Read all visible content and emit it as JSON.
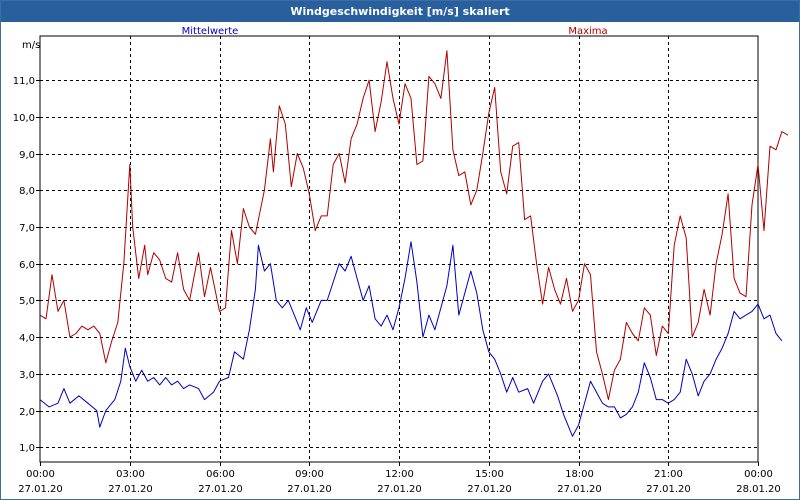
{
  "window": {
    "title": "Windgeschwindigkeit [m/s] skaliert"
  },
  "chart_data": {
    "type": "line",
    "title": "Windgeschwindigkeit [m/s] skaliert",
    "ylabel": "m/s",
    "xlabel": "",
    "ylim": [
      0.6,
      12.2
    ],
    "xlim": [
      0,
      24
    ],
    "grid": true,
    "yticks": [
      1.0,
      2.0,
      3.0,
      4.0,
      5.0,
      6.0,
      7.0,
      8.0,
      9.0,
      10.0,
      11.0
    ],
    "ytick_labels": [
      "1,0",
      "2,0",
      "3,0",
      "4,0",
      "5,0",
      "6,0",
      "7,0",
      "8,0",
      "9,0",
      "10,0",
      "11,0"
    ],
    "xticks": [
      0,
      3,
      6,
      9,
      12,
      15,
      18,
      21,
      24
    ],
    "xtick_time_labels": [
      "00:00",
      "03:00",
      "06:00",
      "09:00",
      "12:00",
      "15:00",
      "18:00",
      "21:00",
      "00:00"
    ],
    "xtick_date_labels": [
      "27.01.20",
      "27.01.20",
      "27.01.20",
      "27.01.20",
      "27.01.20",
      "27.01.20",
      "27.01.20",
      "27.01.20",
      "28.01.20"
    ],
    "series": [
      {
        "name": "Mittelwerte",
        "color": "#0000c0",
        "points": [
          [
            0,
            2.3
          ],
          [
            0.3,
            2.1
          ],
          [
            0.6,
            2.2
          ],
          [
            0.8,
            2.6
          ],
          [
            1.0,
            2.2
          ],
          [
            1.3,
            2.4
          ],
          [
            1.6,
            2.2
          ],
          [
            1.9,
            2.0
          ],
          [
            2.0,
            1.55
          ],
          [
            2.2,
            2.0
          ],
          [
            2.5,
            2.3
          ],
          [
            2.7,
            2.8
          ],
          [
            2.85,
            3.7
          ],
          [
            3.0,
            3.2
          ],
          [
            3.2,
            2.8
          ],
          [
            3.4,
            3.1
          ],
          [
            3.6,
            2.8
          ],
          [
            3.8,
            2.9
          ],
          [
            4.0,
            2.7
          ],
          [
            4.2,
            2.9
          ],
          [
            4.4,
            2.7
          ],
          [
            4.6,
            2.8
          ],
          [
            4.8,
            2.6
          ],
          [
            5.0,
            2.7
          ],
          [
            5.3,
            2.6
          ],
          [
            5.5,
            2.3
          ],
          [
            5.8,
            2.5
          ],
          [
            6.0,
            2.8
          ],
          [
            6.3,
            2.9
          ],
          [
            6.5,
            3.6
          ],
          [
            6.8,
            3.4
          ],
          [
            7.0,
            4.2
          ],
          [
            7.2,
            5.3
          ],
          [
            7.3,
            6.5
          ],
          [
            7.5,
            5.8
          ],
          [
            7.7,
            6.0
          ],
          [
            7.9,
            5.0
          ],
          [
            8.1,
            4.8
          ],
          [
            8.3,
            5.0
          ],
          [
            8.5,
            4.6
          ],
          [
            8.7,
            4.2
          ],
          [
            8.9,
            4.8
          ],
          [
            9.1,
            4.4
          ],
          [
            9.4,
            5.0
          ],
          [
            9.6,
            5.0
          ],
          [
            9.8,
            5.5
          ],
          [
            10.0,
            6.0
          ],
          [
            10.2,
            5.8
          ],
          [
            10.4,
            6.2
          ],
          [
            10.6,
            5.6
          ],
          [
            10.8,
            5.0
          ],
          [
            11.0,
            5.4
          ],
          [
            11.2,
            4.5
          ],
          [
            11.4,
            4.3
          ],
          [
            11.6,
            4.6
          ],
          [
            11.8,
            4.2
          ],
          [
            12.0,
            4.8
          ],
          [
            12.2,
            5.6
          ],
          [
            12.4,
            6.6
          ],
          [
            12.6,
            5.5
          ],
          [
            12.8,
            4.0
          ],
          [
            13.0,
            4.6
          ],
          [
            13.2,
            4.2
          ],
          [
            13.4,
            4.8
          ],
          [
            13.6,
            5.4
          ],
          [
            13.8,
            6.5
          ],
          [
            14.0,
            4.6
          ],
          [
            14.2,
            5.2
          ],
          [
            14.4,
            5.8
          ],
          [
            14.6,
            5.2
          ],
          [
            14.8,
            4.2
          ],
          [
            15.0,
            3.6
          ],
          [
            15.2,
            3.4
          ],
          [
            15.4,
            3.0
          ],
          [
            15.6,
            2.5
          ],
          [
            15.8,
            2.9
          ],
          [
            16.0,
            2.5
          ],
          [
            16.3,
            2.6
          ],
          [
            16.5,
            2.2
          ],
          [
            16.8,
            2.8
          ],
          [
            17.0,
            3.0
          ],
          [
            17.3,
            2.4
          ],
          [
            17.5,
            1.9
          ],
          [
            17.8,
            1.3
          ],
          [
            18.0,
            1.6
          ],
          [
            18.2,
            2.2
          ],
          [
            18.4,
            2.8
          ],
          [
            18.6,
            2.5
          ],
          [
            18.8,
            2.2
          ],
          [
            19.0,
            2.1
          ],
          [
            19.2,
            2.1
          ],
          [
            19.4,
            1.8
          ],
          [
            19.6,
            1.9
          ],
          [
            19.8,
            2.1
          ],
          [
            20.0,
            2.5
          ],
          [
            20.2,
            3.3
          ],
          [
            20.4,
            2.9
          ],
          [
            20.6,
            2.3
          ],
          [
            20.8,
            2.3
          ],
          [
            21.0,
            2.2
          ],
          [
            21.2,
            2.3
          ],
          [
            21.4,
            2.5
          ],
          [
            21.6,
            3.4
          ],
          [
            21.8,
            3.0
          ],
          [
            22.0,
            2.4
          ],
          [
            22.2,
            2.8
          ],
          [
            22.4,
            3.0
          ],
          [
            22.6,
            3.4
          ],
          [
            22.8,
            3.7
          ],
          [
            23.0,
            4.1
          ],
          [
            23.2,
            4.7
          ],
          [
            23.4,
            4.5
          ],
          [
            23.6,
            4.6
          ],
          [
            23.8,
            4.7
          ],
          [
            24.0,
            4.9
          ],
          [
            24.2,
            4.5
          ],
          [
            24.4,
            4.6
          ],
          [
            24.6,
            4.1
          ],
          [
            24.8,
            3.9
          ]
        ]
      },
      {
        "name": "Maxima",
        "color": "#b00000",
        "points": [
          [
            0,
            4.6
          ],
          [
            0.2,
            4.5
          ],
          [
            0.4,
            5.7
          ],
          [
            0.6,
            4.7
          ],
          [
            0.8,
            5.0
          ],
          [
            1.0,
            4.0
          ],
          [
            1.2,
            4.1
          ],
          [
            1.4,
            4.3
          ],
          [
            1.6,
            4.2
          ],
          [
            1.8,
            4.3
          ],
          [
            2.0,
            4.1
          ],
          [
            2.2,
            3.3
          ],
          [
            2.4,
            3.9
          ],
          [
            2.6,
            4.4
          ],
          [
            2.8,
            6.0
          ],
          [
            3.0,
            8.7
          ],
          [
            3.1,
            7.0
          ],
          [
            3.3,
            5.6
          ],
          [
            3.5,
            6.5
          ],
          [
            3.6,
            5.7
          ],
          [
            3.8,
            6.3
          ],
          [
            4.0,
            6.1
          ],
          [
            4.2,
            5.6
          ],
          [
            4.4,
            5.5
          ],
          [
            4.6,
            6.3
          ],
          [
            4.8,
            5.3
          ],
          [
            5.0,
            5.0
          ],
          [
            5.3,
            6.3
          ],
          [
            5.5,
            5.1
          ],
          [
            5.7,
            5.9
          ],
          [
            6.0,
            4.7
          ],
          [
            6.2,
            4.8
          ],
          [
            6.4,
            6.9
          ],
          [
            6.6,
            6.0
          ],
          [
            6.8,
            7.5
          ],
          [
            7.0,
            7.0
          ],
          [
            7.2,
            6.8
          ],
          [
            7.5,
            8.0
          ],
          [
            7.7,
            9.4
          ],
          [
            7.8,
            8.5
          ],
          [
            8.0,
            10.3
          ],
          [
            8.2,
            9.8
          ],
          [
            8.4,
            8.1
          ],
          [
            8.6,
            9.0
          ],
          [
            8.8,
            8.6
          ],
          [
            9.0,
            7.9
          ],
          [
            9.2,
            6.9
          ],
          [
            9.4,
            7.3
          ],
          [
            9.6,
            7.3
          ],
          [
            9.8,
            8.7
          ],
          [
            10.0,
            9.0
          ],
          [
            10.2,
            8.2
          ],
          [
            10.4,
            9.4
          ],
          [
            10.6,
            9.8
          ],
          [
            10.8,
            10.5
          ],
          [
            11.0,
            11.0
          ],
          [
            11.2,
            9.6
          ],
          [
            11.4,
            10.4
          ],
          [
            11.6,
            11.5
          ],
          [
            11.8,
            10.5
          ],
          [
            12.0,
            9.8
          ],
          [
            12.2,
            10.9
          ],
          [
            12.4,
            10.5
          ],
          [
            12.6,
            8.7
          ],
          [
            12.8,
            8.8
          ],
          [
            13.0,
            11.1
          ],
          [
            13.2,
            10.9
          ],
          [
            13.4,
            10.5
          ],
          [
            13.6,
            11.8
          ],
          [
            13.8,
            9.1
          ],
          [
            14.0,
            8.4
          ],
          [
            14.2,
            8.5
          ],
          [
            14.4,
            7.6
          ],
          [
            14.6,
            8.0
          ],
          [
            14.8,
            9.0
          ],
          [
            15.0,
            10.1
          ],
          [
            15.2,
            10.8
          ],
          [
            15.4,
            8.5
          ],
          [
            15.6,
            7.9
          ],
          [
            15.8,
            9.2
          ],
          [
            16.0,
            9.3
          ],
          [
            16.2,
            7.2
          ],
          [
            16.4,
            7.3
          ],
          [
            16.6,
            6.0
          ],
          [
            16.8,
            4.9
          ],
          [
            17.0,
            5.9
          ],
          [
            17.2,
            5.3
          ],
          [
            17.4,
            4.9
          ],
          [
            17.6,
            5.6
          ],
          [
            17.8,
            4.7
          ],
          [
            18.0,
            5.0
          ],
          [
            18.2,
            6.0
          ],
          [
            18.4,
            5.7
          ],
          [
            18.6,
            3.6
          ],
          [
            18.8,
            3.0
          ],
          [
            19.0,
            2.3
          ],
          [
            19.2,
            3.1
          ],
          [
            19.4,
            3.4
          ],
          [
            19.6,
            4.4
          ],
          [
            19.8,
            4.1
          ],
          [
            20.0,
            3.9
          ],
          [
            20.2,
            4.8
          ],
          [
            20.4,
            4.6
          ],
          [
            20.6,
            3.5
          ],
          [
            20.8,
            4.3
          ],
          [
            21.0,
            4.1
          ],
          [
            21.2,
            6.5
          ],
          [
            21.4,
            7.3
          ],
          [
            21.6,
            6.7
          ],
          [
            21.8,
            4.0
          ],
          [
            22.0,
            4.4
          ],
          [
            22.2,
            5.3
          ],
          [
            22.4,
            4.6
          ],
          [
            22.6,
            6.0
          ],
          [
            22.8,
            6.8
          ],
          [
            23.0,
            7.9
          ],
          [
            23.2,
            5.6
          ],
          [
            23.4,
            5.2
          ],
          [
            23.6,
            5.1
          ],
          [
            23.8,
            7.6
          ],
          [
            24.0,
            8.7
          ],
          [
            24.2,
            6.9
          ],
          [
            24.4,
            9.2
          ],
          [
            24.6,
            9.1
          ],
          [
            24.8,
            9.6
          ],
          [
            25.0,
            9.5
          ]
        ]
      }
    ]
  }
}
